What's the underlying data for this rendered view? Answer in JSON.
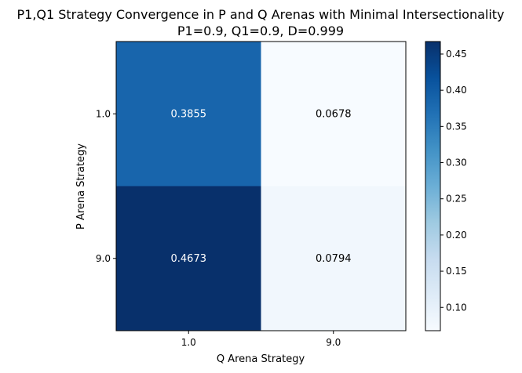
{
  "chart_data": {
    "type": "heatmap",
    "title": "P1,Q1 Strategy Convergence in P and Q Arenas with Minimal Intersectionality",
    "subtitle": "P1=0.9, Q1=0.9, D=0.999",
    "xlabel": "Q Arena Strategy",
    "ylabel": "P Arena Strategy",
    "x_categories": [
      "1.0",
      "9.0"
    ],
    "y_categories": [
      "1.0",
      "9.0"
    ],
    "values": [
      [
        0.3855,
        0.0678
      ],
      [
        0.4673,
        0.0794
      ]
    ],
    "value_labels": [
      [
        "0.3855",
        "0.0678"
      ],
      [
        "0.4673",
        "0.0794"
      ]
    ],
    "colormap": "Blues",
    "color_range": [
      0.0678,
      0.4673
    ],
    "colorbar_ticks": [
      "0.10",
      "0.15",
      "0.20",
      "0.25",
      "0.30",
      "0.35",
      "0.40",
      "0.45"
    ],
    "colorbar_tick_values": [
      0.1,
      0.15,
      0.2,
      0.25,
      0.3,
      0.35,
      0.4,
      0.45
    ],
    "grid": false
  }
}
